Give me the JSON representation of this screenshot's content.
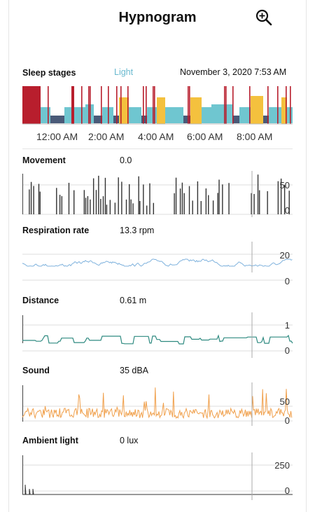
{
  "header": {
    "title": "Hypnogram",
    "zoom_icon": "zoom-in-icon"
  },
  "sleep_stages": {
    "label": "Sleep stages",
    "current_stage": "Light",
    "timestamp": "November 3, 2020 7:53 AM",
    "time_ticks": [
      "12:00 AM",
      "2:00 AM",
      "4:00 AM",
      "6:00 AM",
      "8:00 AM"
    ],
    "colors": {
      "awake": "#b81e2d",
      "rem": "#f4c13e",
      "light": "#6fc6d0",
      "deep": "#4a5a78"
    }
  },
  "movement": {
    "label": "Movement",
    "value": "0.0",
    "axis_max": "50",
    "axis_min": "0",
    "color": "#333333"
  },
  "respiration": {
    "label": "Respiration rate",
    "value": "13.3 rpm",
    "axis_max": "20",
    "axis_min": "0",
    "color": "#7fb2dd"
  },
  "distance": {
    "label": "Distance",
    "value": "0.61 m",
    "axis_max": "1",
    "axis_min": "0",
    "color": "#2e8a80"
  },
  "sound": {
    "label": "Sound",
    "value": "35 dBA",
    "axis_max": "50",
    "axis_min": "0",
    "color": "#f0a04c"
  },
  "ambient_light": {
    "label": "Ambient light",
    "value": "0 lux",
    "axis_max": "250",
    "axis_min": "0",
    "color": "#333333"
  }
}
